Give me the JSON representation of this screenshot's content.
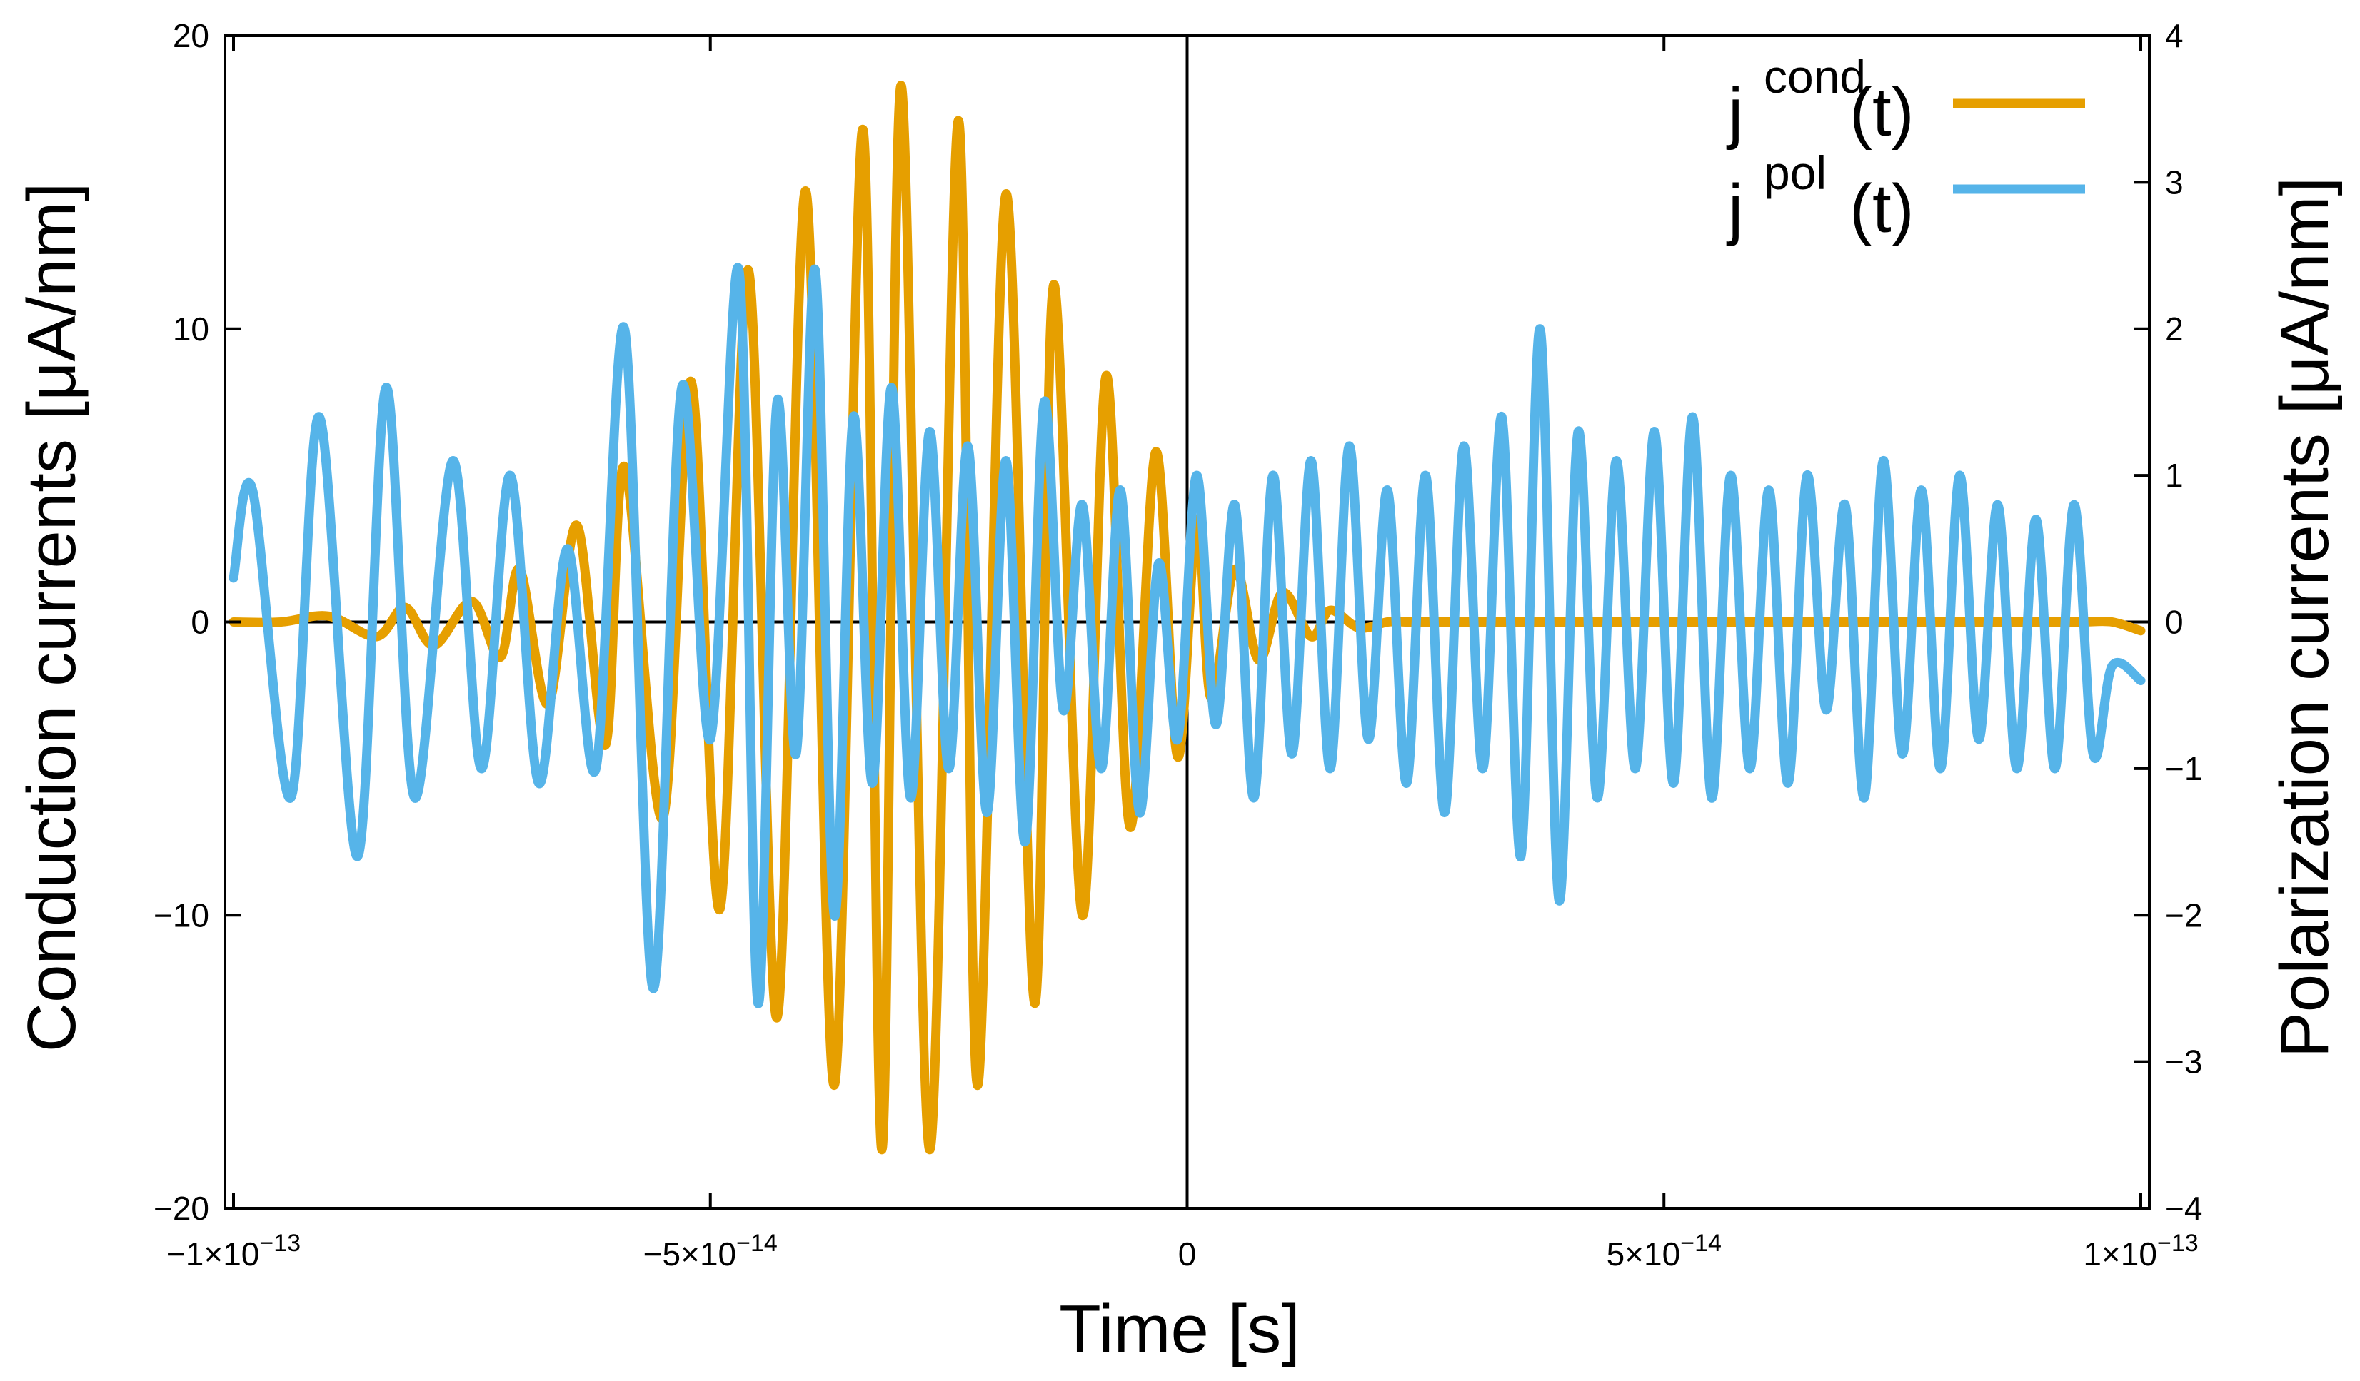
{
  "chart_data": {
    "type": "line",
    "x_axis": {
      "label": "Time [s]",
      "range": [
        -1e-13,
        1e-13
      ],
      "ticks": [
        -1e-13,
        -5e-14,
        0,
        5e-14,
        1e-13
      ],
      "tick_labels": [
        {
          "mant": "−1×10",
          "exp": "−13"
        },
        {
          "mant": "−5×10",
          "exp": "−14"
        },
        {
          "mant": "0",
          "exp": ""
        },
        {
          "mant": "5×10",
          "exp": "−14"
        },
        {
          "mant": "1×10",
          "exp": "−13"
        }
      ]
    },
    "y_left": {
      "label": "Conduction currents [μA/nm]",
      "range": [
        -20,
        20
      ],
      "ticks": [
        -20,
        -10,
        0,
        10,
        20
      ],
      "tick_labels": [
        "−20",
        "−10",
        "0",
        "10",
        "20"
      ]
    },
    "y_right": {
      "label": "Polarization currents [μA/nm]",
      "range": [
        -4,
        4
      ],
      "ticks": [
        -4,
        -3,
        -2,
        -1,
        0,
        1,
        2,
        3,
        4
      ],
      "tick_labels": [
        "−4",
        "−3",
        "−2",
        "−1",
        "0",
        "1",
        "2",
        "3",
        "4"
      ]
    },
    "legend": {
      "placement": "top-right",
      "entries": [
        {
          "base": "j",
          "sup": "cond",
          "suffix": "(t)",
          "color": "#E69F00"
        },
        {
          "base": "j",
          "sup": "pol",
          "suffix": "(t)",
          "color": "#56B4E9"
        }
      ]
    },
    "series": [
      {
        "name": "j cond (t)",
        "axis": "left",
        "color": "#E69F00",
        "x": [
          -1e-13,
          -9.5e-14,
          -9e-14,
          -8.5e-14,
          -8.2e-14,
          -7.9e-14,
          -7.5e-14,
          -7.2e-14,
          -7e-14,
          -6.7e-14,
          -6.4e-14,
          -6.1e-14,
          -5.9e-14,
          -5.5e-14,
          -5.2e-14,
          -4.9e-14,
          -4.6e-14,
          -4.3e-14,
          -4e-14,
          -3.7e-14,
          -3.4e-14,
          -3.2e-14,
          -3e-14,
          -2.7e-14,
          -2.4e-14,
          -2.2e-14,
          -1.9e-14,
          -1.6e-14,
          -1.4e-14,
          -1.1e-14,
          -8.5e-15,
          -6e-15,
          -3.3e-15,
          -1e-15,
          1e-15,
          2.5e-15,
          5e-15,
          7.5e-15,
          1e-14,
          1.3e-14,
          1.5e-14,
          1.8e-14,
          2.1e-14,
          2.3e-14,
          2.6e-14,
          2.9e-14,
          3.1e-14,
          3.4e-14,
          3.7e-14,
          3.9e-14,
          4.2e-14,
          4.5e-14,
          4.7e-14,
          5e-14,
          5.3e-14,
          5.5e-14,
          5.8e-14,
          6.1e-14,
          6.4e-14,
          6.7e-14,
          7e-14,
          7.3e-14,
          7.6e-14,
          7.9e-14,
          8.2e-14,
          8.5e-14,
          8.8e-14,
          9.1e-14,
          9.4e-14,
          9.7e-14,
          1e-13
        ],
        "values": [
          0,
          0,
          0.2,
          -0.5,
          0.5,
          -0.8,
          0.7,
          -1.2,
          1.8,
          -2.8,
          3.3,
          -4.2,
          5.3,
          -6.7,
          8.2,
          -9.8,
          12.0,
          -13.5,
          14.7,
          -15.8,
          16.8,
          -18.0,
          18.3,
          -18.0,
          17.1,
          -15.8,
          14.6,
          -13.0,
          11.5,
          -10.0,
          8.4,
          -7.0,
          5.8,
          -4.6,
          3.5,
          -2.6,
          1.8,
          -1.3,
          1.0,
          -0.5,
          0.4,
          -0.2,
          0,
          0,
          0,
          0,
          0,
          0,
          0,
          0,
          0,
          0,
          0,
          0,
          0,
          0,
          0,
          0,
          0,
          0,
          0,
          0,
          0,
          0,
          0,
          0,
          0,
          0,
          0,
          0,
          -0.3
        ]
      },
      {
        "name": "j pol (t)",
        "axis": "right",
        "color": "#56B4E9",
        "x": [
          -1e-13,
          -9.8e-14,
          -9.4e-14,
          -9.1e-14,
          -8.7e-14,
          -8.4e-14,
          -8.1e-14,
          -7.7e-14,
          -7.4e-14,
          -7.1e-14,
          -6.8e-14,
          -6.5e-14,
          -6.2e-14,
          -5.9e-14,
          -5.6e-14,
          -5.3e-14,
          -5e-14,
          -4.7e-14,
          -4.5e-14,
          -4.3e-14,
          -4.1e-14,
          -3.9e-14,
          -3.7e-14,
          -3.5e-14,
          -3.3e-14,
          -3.1e-14,
          -2.9e-14,
          -2.7e-14,
          -2.5e-14,
          -2.3e-14,
          -2.1e-14,
          -1.9e-14,
          -1.7e-14,
          -1.5e-14,
          -1.3e-14,
          -1.1e-14,
          -9e-15,
          -7e-15,
          -5e-15,
          -3e-15,
          -1e-15,
          1e-15,
          3e-15,
          5e-15,
          7e-15,
          9e-15,
          1.1e-14,
          1.3e-14,
          1.5e-14,
          1.7e-14,
          1.9e-14,
          2.1e-14,
          2.3e-14,
          2.5e-14,
          2.7e-14,
          2.9e-14,
          3.1e-14,
          3.3e-14,
          3.5e-14,
          3.7e-14,
          3.9e-14,
          4.1e-14,
          4.3e-14,
          4.5e-14,
          4.7e-14,
          4.9e-14,
          5.1e-14,
          5.3e-14,
          5.5e-14,
          5.7e-14,
          5.9e-14,
          6.1e-14,
          6.3e-14,
          6.5e-14,
          6.7e-14,
          6.9e-14,
          7.1e-14,
          7.3e-14,
          7.5e-14,
          7.7e-14,
          7.9e-14,
          8.1e-14,
          8.3e-14,
          8.5e-14,
          8.7e-14,
          8.9e-14,
          9.1e-14,
          9.3e-14,
          9.5e-14,
          9.7e-14,
          1e-13
        ],
        "values": [
          0.3,
          0.9,
          -1.2,
          1.4,
          -1.6,
          1.6,
          -1.2,
          1.1,
          -1.0,
          1.0,
          -1.1,
          0.5,
          -1.0,
          2.0,
          -2.5,
          1.6,
          -0.8,
          2.4,
          -2.6,
          1.5,
          -0.9,
          2.4,
          -2.0,
          1.4,
          -1.1,
          1.6,
          -1.2,
          1.3,
          -1.0,
          1.2,
          -1.3,
          1.1,
          -1.5,
          1.5,
          -0.6,
          0.8,
          -1.0,
          0.9,
          -1.3,
          0.4,
          -0.8,
          1.0,
          -0.7,
          0.8,
          -1.2,
          1.0,
          -0.9,
          1.1,
          -1.0,
          1.2,
          -0.8,
          0.9,
          -1.1,
          1.0,
          -1.3,
          1.2,
          -1.0,
          1.4,
          -1.6,
          2.0,
          -1.9,
          1.3,
          -1.2,
          1.1,
          -1.0,
          1.3,
          -1.1,
          1.4,
          -1.2,
          1.0,
          -1.0,
          0.9,
          -1.1,
          1.0,
          -0.6,
          0.8,
          -1.2,
          1.1,
          -0.9,
          0.9,
          -1.0,
          1.0,
          -0.8,
          0.8,
          -1.0,
          0.7,
          -1.0,
          0.8,
          -0.9,
          -0.3,
          -0.4
        ]
      }
    ]
  }
}
